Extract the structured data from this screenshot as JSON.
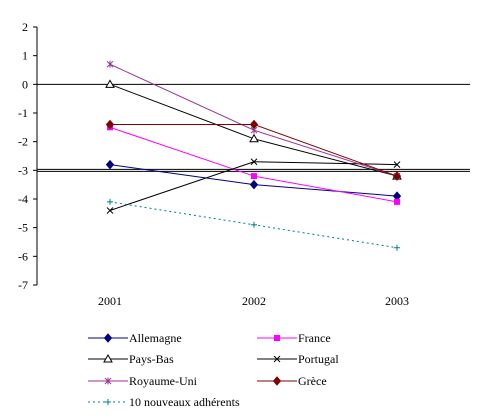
{
  "chart_data": {
    "type": "line",
    "title": "",
    "xlabel": "",
    "ylabel": "",
    "categories": [
      "2001",
      "2002",
      "2003"
    ],
    "ylim": [
      -7,
      2
    ],
    "yticks": [
      "2",
      "1",
      "0",
      "-1",
      "-2",
      "-3",
      "-4",
      "-5",
      "-6",
      "-7"
    ],
    "grid": false,
    "reference_lines": [
      {
        "y": 0,
        "style": "solid"
      },
      {
        "y": -3,
        "style": "double"
      }
    ],
    "legend_position": "bottom",
    "series": [
      {
        "name": "Allemagne",
        "values": [
          -2.8,
          -3.5,
          -3.9
        ],
        "color": "#000080",
        "marker": "diamond"
      },
      {
        "name": "France",
        "values": [
          -1.5,
          -3.2,
          -4.1
        ],
        "color": "#ff00ff",
        "marker": "square"
      },
      {
        "name": "Pays-Bas",
        "values": [
          0.0,
          -1.9,
          -3.2
        ],
        "color": "#000000",
        "marker": "triangle"
      },
      {
        "name": "Portugal",
        "values": [
          -4.4,
          -2.7,
          -2.8
        ],
        "color": "#000000",
        "marker": "x"
      },
      {
        "name": "Royaume-Uni",
        "values": [
          0.7,
          -1.6,
          -3.2
        ],
        "color": "#993399",
        "marker": "star"
      },
      {
        "name": "Grèce",
        "values": [
          -1.4,
          -1.4,
          -3.2
        ],
        "color": "#800000",
        "marker": "diamond"
      },
      {
        "name": "10 nouveaux adhérents",
        "values": [
          -4.1,
          -4.9,
          -5.7
        ],
        "color": "#008080",
        "marker": "plus",
        "dashed": true
      }
    ]
  }
}
